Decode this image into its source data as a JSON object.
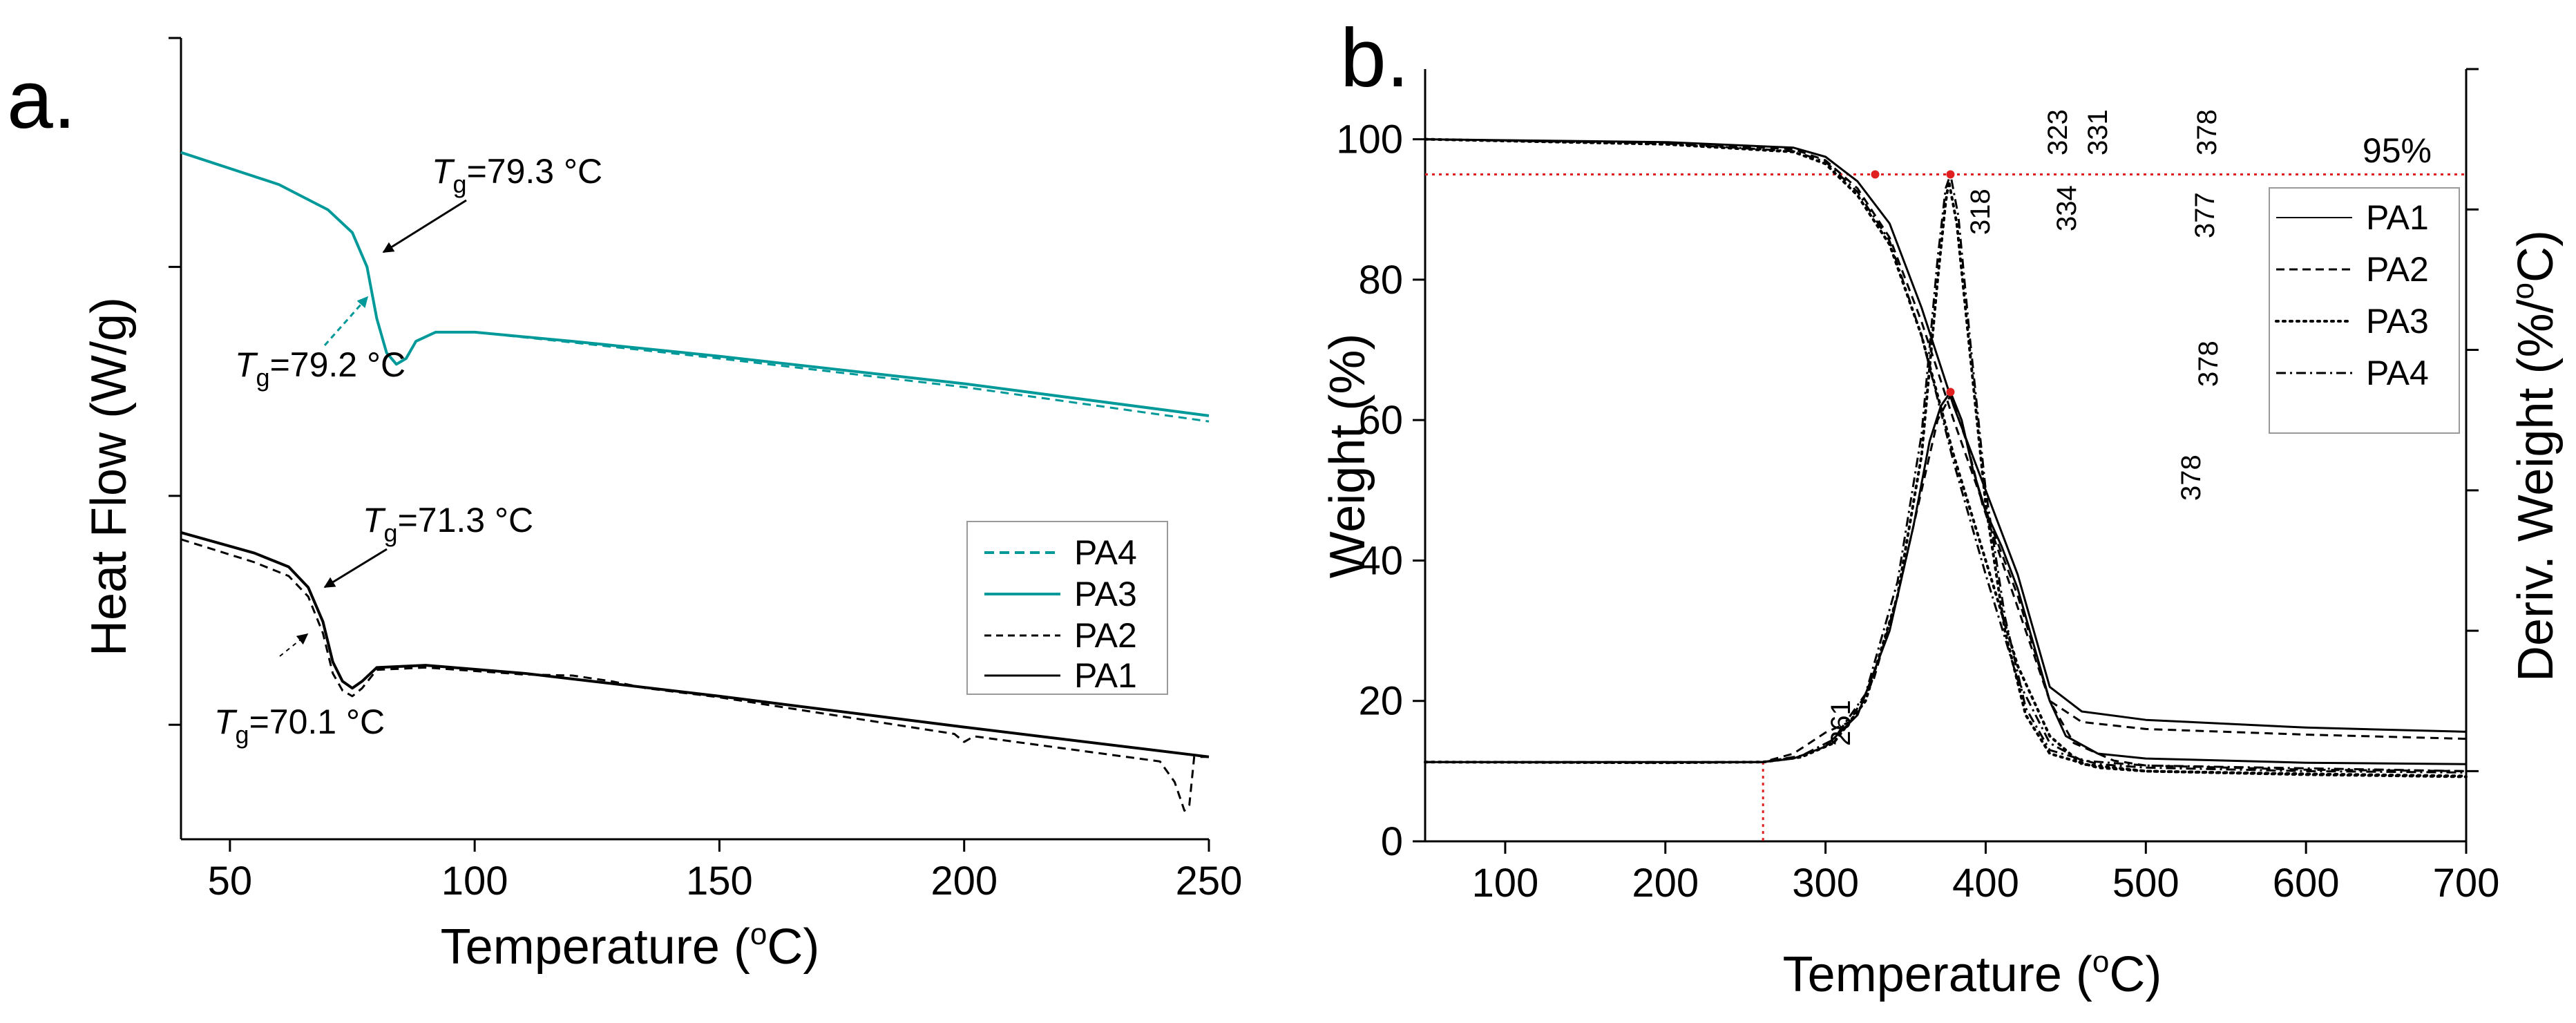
{
  "chart_data": [
    {
      "type": "line",
      "panel_label": "a.",
      "xlabel": "Temperature",
      "xlabel_unit_open": " (",
      "xlabel_unit_sup": "o",
      "xlabel_unit_close": "C)",
      "ylabel": "Heat Flow (W/g)",
      "xlim": [
        40,
        250
      ],
      "ylim": [
        0,
        7
      ],
      "x_ticks": [
        50,
        100,
        150,
        200,
        250
      ],
      "y_ticks": [
        1,
        3,
        5,
        7
      ],
      "y_tick_labels_shown": false,
      "legend_position": "bottom-right",
      "series": [
        {
          "name": "PA4",
          "color": "#009999",
          "dash": "dashed",
          "points": [
            [
              40,
              6.0
            ],
            [
              60,
              5.72
            ],
            [
              70,
              5.5
            ],
            [
              75,
              5.3
            ],
            [
              78,
              5.0
            ],
            [
              80,
              4.55
            ],
            [
              82,
              4.25
            ],
            [
              84,
              4.15
            ],
            [
              86,
              4.2
            ],
            [
              88,
              4.35
            ],
            [
              92,
              4.43
            ],
            [
              100,
              4.43
            ],
            [
              120,
              4.34
            ],
            [
              150,
              4.2
            ],
            [
              200,
              3.95
            ],
            [
              250,
              3.65
            ]
          ]
        },
        {
          "name": "PA3",
          "color": "#009999",
          "dash": "solid",
          "points": [
            [
              40,
              6.0
            ],
            [
              60,
              5.72
            ],
            [
              70,
              5.5
            ],
            [
              75,
              5.3
            ],
            [
              78,
              5.0
            ],
            [
              80,
              4.55
            ],
            [
              82,
              4.25
            ],
            [
              84,
              4.15
            ],
            [
              86,
              4.2
            ],
            [
              88,
              4.35
            ],
            [
              92,
              4.43
            ],
            [
              100,
              4.43
            ],
            [
              120,
              4.35
            ],
            [
              150,
              4.22
            ],
            [
              200,
              3.98
            ],
            [
              250,
              3.7
            ]
          ]
        },
        {
          "name": "PA2",
          "color": "#000000",
          "dash": "dashed",
          "points": [
            [
              40,
              2.62
            ],
            [
              55,
              2.42
            ],
            [
              62,
              2.3
            ],
            [
              66,
              2.12
            ],
            [
              69,
              1.8
            ],
            [
              71,
              1.45
            ],
            [
              73,
              1.3
            ],
            [
              75,
              1.25
            ],
            [
              77,
              1.32
            ],
            [
              80,
              1.48
            ],
            [
              90,
              1.5
            ],
            [
              110,
              1.44
            ],
            [
              120,
              1.43
            ],
            [
              128,
              1.38
            ],
            [
              135,
              1.32
            ],
            [
              150,
              1.24
            ],
            [
              198,
              0.92
            ],
            [
              200,
              0.85
            ],
            [
              202,
              0.9
            ],
            [
              240,
              0.68
            ],
            [
              243,
              0.5
            ],
            [
              245,
              0.25
            ],
            [
              246,
              0.3
            ],
            [
              247,
              0.72
            ],
            [
              250,
              0.72
            ]
          ]
        },
        {
          "name": "PA1",
          "color": "#000000",
          "dash": "solid",
          "points": [
            [
              40,
              2.68
            ],
            [
              55,
              2.5
            ],
            [
              62,
              2.38
            ],
            [
              66,
              2.2
            ],
            [
              69,
              1.9
            ],
            [
              71,
              1.55
            ],
            [
              73,
              1.38
            ],
            [
              75,
              1.32
            ],
            [
              77,
              1.38
            ],
            [
              80,
              1.5
            ],
            [
              90,
              1.52
            ],
            [
              110,
              1.45
            ],
            [
              150,
              1.25
            ],
            [
              200,
              0.98
            ],
            [
              250,
              0.72
            ]
          ]
        }
      ],
      "annotations": [
        {
          "label": "T",
          "sub": "g",
          "value": "=79.3 °C"
        },
        {
          "label": "T",
          "sub": "g",
          "value": "=79.2 °C"
        },
        {
          "label": "T",
          "sub": "g",
          "value": "=71.3 °C"
        },
        {
          "label": "T",
          "sub": "g",
          "value": "=70.1 °C"
        }
      ]
    },
    {
      "type": "line",
      "panel_label": "b.",
      "xlabel": "Temperature",
      "xlabel_unit_open": " (",
      "xlabel_unit_sup": "o",
      "xlabel_unit_close": "C)",
      "ylabel": "Weight (%)",
      "y2label": "Deriv. Weight (%/",
      "y2label_sup": "o",
      "y2label_close": "C)",
      "xlim": [
        50,
        700
      ],
      "ylim": [
        0,
        110
      ],
      "x_ticks": [
        100,
        200,
        300,
        400,
        500,
        600,
        700
      ],
      "y_ticks": [
        0,
        20,
        40,
        60,
        80,
        100
      ],
      "reference_line": {
        "y": 95,
        "label": "95%",
        "color": "#e02020"
      },
      "reference_vline": {
        "x": 261,
        "color": "#e02020"
      },
      "legend_position": "top-right",
      "weight_series": [
        {
          "name": "PA1",
          "dash": "solid",
          "points": [
            [
              50,
              100
            ],
            [
              200,
              99.6
            ],
            [
              280,
              98.8
            ],
            [
              300,
              97.5
            ],
            [
              320,
              94
            ],
            [
              340,
              88
            ],
            [
              360,
              76
            ],
            [
              380,
              62
            ],
            [
              400,
              50
            ],
            [
              420,
              38
            ],
            [
              440,
              22
            ],
            [
              460,
              18.5
            ],
            [
              500,
              17.3
            ],
            [
              600,
              16.2
            ],
            [
              700,
              15.6
            ]
          ]
        },
        {
          "name": "PA2",
          "dash": "dashed",
          "points": [
            [
              50,
              100
            ],
            [
              200,
              99.5
            ],
            [
              280,
              98.6
            ],
            [
              300,
              97
            ],
            [
              320,
              93
            ],
            [
              340,
              86
            ],
            [
              360,
              74
            ],
            [
              380,
              60
            ],
            [
              400,
              47
            ],
            [
              420,
              35
            ],
            [
              440,
              20
            ],
            [
              460,
              17
            ],
            [
              500,
              16
            ],
            [
              600,
              15.2
            ],
            [
              700,
              14.6
            ]
          ]
        },
        {
          "name": "PA3",
          "dash": "dotted",
          "points": [
            [
              50,
              100
            ],
            [
              200,
              99.3
            ],
            [
              280,
              98.2
            ],
            [
              300,
              96.5
            ],
            [
              320,
              92
            ],
            [
              340,
              85
            ],
            [
              360,
              72
            ],
            [
              380,
              55
            ],
            [
              400,
              40
            ],
            [
              420,
              25
            ],
            [
              440,
              15
            ],
            [
              460,
              11
            ],
            [
              500,
              10
            ],
            [
              600,
              9.5
            ],
            [
              700,
              9.2
            ]
          ]
        },
        {
          "name": "PA4",
          "dash": "dashdot",
          "points": [
            [
              50,
              100
            ],
            [
              200,
              99.4
            ],
            [
              280,
              98.3
            ],
            [
              300,
              96.8
            ],
            [
              320,
              92.5
            ],
            [
              340,
              85.5
            ],
            [
              360,
              72
            ],
            [
              380,
              54
            ],
            [
              400,
              38
            ],
            [
              420,
              23
            ],
            [
              440,
              14
            ],
            [
              460,
              11.5
            ],
            [
              500,
              10.8
            ],
            [
              600,
              10.4
            ],
            [
              700,
              10
            ]
          ]
        }
      ],
      "deriv_series": [
        {
          "name": "PA1",
          "dash": "solid",
          "points": [
            [
              50,
              11.3
            ],
            [
              200,
              11.3
            ],
            [
              261,
              11.3
            ],
            [
              280,
              11.8
            ],
            [
              300,
              13.5
            ],
            [
              320,
              18
            ],
            [
              340,
              30
            ],
            [
              355,
              45
            ],
            [
              365,
              57
            ],
            [
              372,
              62
            ],
            [
              378,
              64
            ],
            [
              385,
              60
            ],
            [
              392,
              53
            ],
            [
              400,
              47
            ],
            [
              410,
              42
            ],
            [
              420,
              36
            ],
            [
              430,
              28
            ],
            [
              440,
              20
            ],
            [
              450,
              15
            ],
            [
              470,
              12.5
            ],
            [
              500,
              11.8
            ],
            [
              600,
              11.2
            ],
            [
              700,
              11
            ]
          ]
        },
        {
          "name": "PA2",
          "dash": "dashed",
          "points": [
            [
              50,
              11.3
            ],
            [
              200,
              11.3
            ],
            [
              261,
              11.3
            ],
            [
              280,
              12.5
            ],
            [
              300,
              15.5
            ],
            [
              315,
              17
            ],
            [
              330,
              23
            ],
            [
              345,
              35
            ],
            [
              360,
              50
            ],
            [
              370,
              60
            ],
            [
              378,
              63.5
            ],
            [
              388,
              57
            ],
            [
              398,
              48
            ],
            [
              410,
              40
            ],
            [
              425,
              30
            ],
            [
              440,
              20
            ],
            [
              455,
              14
            ],
            [
              480,
              11.5
            ],
            [
              500,
              10.8
            ],
            [
              600,
              10.2
            ],
            [
              700,
              10
            ]
          ]
        },
        {
          "name": "PA3",
          "dash": "dotted",
          "points": [
            [
              50,
              11.3
            ],
            [
              200,
              11.2
            ],
            [
              261,
              11.3
            ],
            [
              285,
              12
            ],
            [
              305,
              14
            ],
            [
              325,
              20
            ],
            [
              345,
              35
            ],
            [
              360,
              55
            ],
            [
              370,
              80
            ],
            [
              375,
              91
            ],
            [
              377,
              94
            ],
            [
              382,
              88
            ],
            [
              390,
              70
            ],
            [
              400,
              48
            ],
            [
              412,
              30
            ],
            [
              425,
              18
            ],
            [
              440,
              12.5
            ],
            [
              470,
              10.5
            ],
            [
              500,
              10
            ],
            [
              600,
              9.6
            ],
            [
              700,
              9.3
            ]
          ]
        },
        {
          "name": "PA4",
          "dash": "dashdot",
          "points": [
            [
              50,
              11.3
            ],
            [
              200,
              11.2
            ],
            [
              261,
              11.3
            ],
            [
              285,
              12.2
            ],
            [
              305,
              14.5
            ],
            [
              325,
              21
            ],
            [
              345,
              37
            ],
            [
              360,
              58
            ],
            [
              370,
              83
            ],
            [
              375,
              93
            ],
            [
              378,
              95
            ],
            [
              383,
              89
            ],
            [
              390,
              72
            ],
            [
              400,
              50
            ],
            [
              412,
              32
            ],
            [
              425,
              19
            ],
            [
              440,
              13
            ],
            [
              470,
              11
            ],
            [
              500,
              10.5
            ],
            [
              600,
              10
            ],
            [
              700,
              9.8
            ]
          ]
        }
      ],
      "annotations": [
        "323",
        "331",
        "378",
        "318",
        "334",
        "377",
        "378",
        "378",
        "261"
      ]
    }
  ]
}
